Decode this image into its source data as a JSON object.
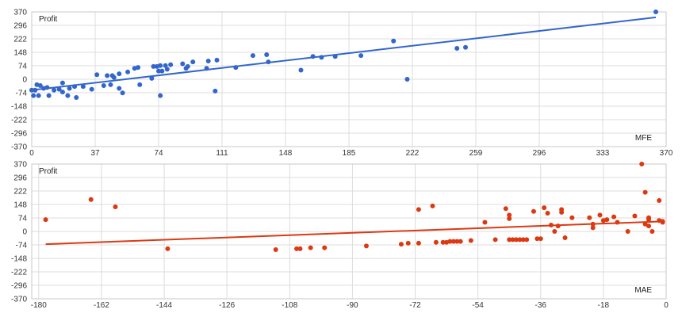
{
  "chart_data": [
    {
      "type": "scatter",
      "ylabel": "Profit",
      "xlabel": "MFE",
      "xlim": [
        0,
        370
      ],
      "ylim": [
        -370,
        370
      ],
      "xticks": [
        "0",
        "37",
        "74",
        "111",
        "148",
        "185",
        "222",
        "259",
        "296",
        "333",
        "370"
      ],
      "yticks": [
        "370",
        "296",
        "222",
        "148",
        "74",
        "0",
        "-74",
        "-148",
        "-222",
        "-296",
        "-370"
      ],
      "grid": true,
      "point_color": "#3366cc",
      "trend_color": "#3366cc",
      "trendline": {
        "x": [
          0,
          364
        ],
        "y": [
          -60,
          340
        ]
      },
      "points": [
        {
          "x": 0,
          "y": -60
        },
        {
          "x": 1,
          "y": -90
        },
        {
          "x": 2,
          "y": -60
        },
        {
          "x": 3,
          "y": -30
        },
        {
          "x": 4,
          "y": -90
        },
        {
          "x": 5,
          "y": -35
        },
        {
          "x": 7,
          "y": -50
        },
        {
          "x": 9,
          "y": -45
        },
        {
          "x": 10,
          "y": -90
        },
        {
          "x": 13,
          "y": -60
        },
        {
          "x": 16,
          "y": -55
        },
        {
          "x": 18,
          "y": -20
        },
        {
          "x": 18,
          "y": -70
        },
        {
          "x": 21,
          "y": -90
        },
        {
          "x": 22,
          "y": -50
        },
        {
          "x": 25,
          "y": -40
        },
        {
          "x": 26,
          "y": -100
        },
        {
          "x": 30,
          "y": -40
        },
        {
          "x": 35,
          "y": -55
        },
        {
          "x": 38,
          "y": 25
        },
        {
          "x": 42,
          "y": -35
        },
        {
          "x": 44,
          "y": 20
        },
        {
          "x": 46,
          "y": -30
        },
        {
          "x": 47,
          "y": 20
        },
        {
          "x": 48,
          "y": 10
        },
        {
          "x": 51,
          "y": 30
        },
        {
          "x": 51,
          "y": -50
        },
        {
          "x": 53,
          "y": -75
        },
        {
          "x": 56,
          "y": 40
        },
        {
          "x": 60,
          "y": 60
        },
        {
          "x": 62,
          "y": 65
        },
        {
          "x": 63,
          "y": -30
        },
        {
          "x": 70,
          "y": 5
        },
        {
          "x": 71,
          "y": 70
        },
        {
          "x": 73,
          "y": 70
        },
        {
          "x": 74,
          "y": 45
        },
        {
          "x": 75,
          "y": 75
        },
        {
          "x": 75,
          "y": -90
        },
        {
          "x": 76,
          "y": 45
        },
        {
          "x": 78,
          "y": 75
        },
        {
          "x": 79,
          "y": 55
        },
        {
          "x": 81,
          "y": 80
        },
        {
          "x": 88,
          "y": 85
        },
        {
          "x": 90,
          "y": 60
        },
        {
          "x": 91,
          "y": 70
        },
        {
          "x": 94,
          "y": 95
        },
        {
          "x": 102,
          "y": 60
        },
        {
          "x": 103,
          "y": 100
        },
        {
          "x": 107,
          "y": -65
        },
        {
          "x": 108,
          "y": 105
        },
        {
          "x": 119,
          "y": 65
        },
        {
          "x": 129,
          "y": 130
        },
        {
          "x": 137,
          "y": 135
        },
        {
          "x": 138,
          "y": 95
        },
        {
          "x": 157,
          "y": 50
        },
        {
          "x": 164,
          "y": 125
        },
        {
          "x": 169,
          "y": 120
        },
        {
          "x": 177,
          "y": 125
        },
        {
          "x": 192,
          "y": 130
        },
        {
          "x": 211,
          "y": 210
        },
        {
          "x": 219,
          "y": 0
        },
        {
          "x": 248,
          "y": 170
        },
        {
          "x": 253,
          "y": 175
        },
        {
          "x": 364,
          "y": 370
        }
      ]
    },
    {
      "type": "scatter",
      "ylabel": "Profit",
      "xlabel": "MAE",
      "xlim": [
        -182,
        0
      ],
      "ylim": [
        -370,
        370
      ],
      "xticks": [
        "-180",
        "-162",
        "-144",
        "-126",
        "-108",
        "-90",
        "-72",
        "-54",
        "-36",
        "-18",
        "0"
      ],
      "xtick_values": [
        -180,
        -162,
        -144,
        -126,
        -108,
        -90,
        -72,
        -54,
        -36,
        -18,
        0
      ],
      "yticks": [
        "370",
        "296",
        "222",
        "148",
        "74",
        "0",
        "-74",
        "-148",
        "-222",
        "-296",
        "-370"
      ],
      "grid": true,
      "point_color": "#dc3912",
      "trend_color": "#dc3912",
      "trendline": {
        "x": [
          -178,
          -1
        ],
        "y": [
          -70,
          55
        ]
      },
      "points": [
        {
          "x": -178,
          "y": 65
        },
        {
          "x": -165,
          "y": 175
        },
        {
          "x": -158,
          "y": 135
        },
        {
          "x": -143,
          "y": -95
        },
        {
          "x": -112,
          "y": -100
        },
        {
          "x": -106,
          "y": -95
        },
        {
          "x": -105,
          "y": -95
        },
        {
          "x": -102,
          "y": -90
        },
        {
          "x": -98,
          "y": -90
        },
        {
          "x": -86,
          "y": -80
        },
        {
          "x": -76,
          "y": -70
        },
        {
          "x": -74,
          "y": -65
        },
        {
          "x": -71,
          "y": 120
        },
        {
          "x": -71,
          "y": -65
        },
        {
          "x": -67,
          "y": 140
        },
        {
          "x": -66,
          "y": -60
        },
        {
          "x": -64,
          "y": -60
        },
        {
          "x": -63,
          "y": -60
        },
        {
          "x": -62,
          "y": -55
        },
        {
          "x": -61,
          "y": -55
        },
        {
          "x": -60,
          "y": -55
        },
        {
          "x": -59,
          "y": -55
        },
        {
          "x": -56,
          "y": -50
        },
        {
          "x": -52,
          "y": 50
        },
        {
          "x": -49,
          "y": -45
        },
        {
          "x": -46,
          "y": 125
        },
        {
          "x": -45,
          "y": 90
        },
        {
          "x": -45,
          "y": 70
        },
        {
          "x": -45,
          "y": -45
        },
        {
          "x": -44,
          "y": -45
        },
        {
          "x": -43,
          "y": -45
        },
        {
          "x": -42,
          "y": -45
        },
        {
          "x": -41,
          "y": -45
        },
        {
          "x": -40,
          "y": -45
        },
        {
          "x": -38,
          "y": 110
        },
        {
          "x": -37,
          "y": -40
        },
        {
          "x": -36,
          "y": -40
        },
        {
          "x": -35,
          "y": 130
        },
        {
          "x": -34,
          "y": 100
        },
        {
          "x": -33,
          "y": 35
        },
        {
          "x": -32,
          "y": 0
        },
        {
          "x": -31,
          "y": 30
        },
        {
          "x": -30,
          "y": 120
        },
        {
          "x": -30,
          "y": 105
        },
        {
          "x": -29,
          "y": -35
        },
        {
          "x": -27,
          "y": 75
        },
        {
          "x": -22,
          "y": 75
        },
        {
          "x": -21,
          "y": 40
        },
        {
          "x": -21,
          "y": 20
        },
        {
          "x": -19,
          "y": 90
        },
        {
          "x": -18,
          "y": 60
        },
        {
          "x": -17,
          "y": 65
        },
        {
          "x": -15,
          "y": 80
        },
        {
          "x": -14,
          "y": 50
        },
        {
          "x": -11,
          "y": 0
        },
        {
          "x": -9,
          "y": 85
        },
        {
          "x": -7,
          "y": 370
        },
        {
          "x": -6,
          "y": 215
        },
        {
          "x": -6,
          "y": 40
        },
        {
          "x": -5,
          "y": 75
        },
        {
          "x": -5,
          "y": 65
        },
        {
          "x": -5,
          "y": 30
        },
        {
          "x": -4,
          "y": 0
        },
        {
          "x": -2,
          "y": 60
        },
        {
          "x": -2,
          "y": 170
        },
        {
          "x": -1,
          "y": 55
        },
        {
          "x": -1,
          "y": 50
        }
      ]
    }
  ]
}
